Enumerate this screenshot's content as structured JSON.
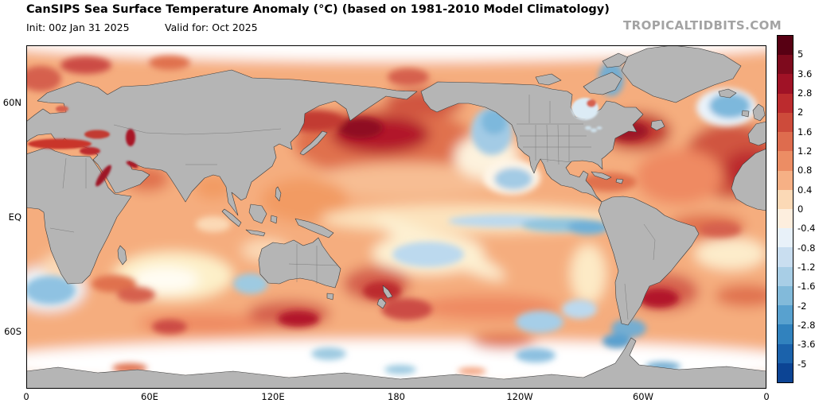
{
  "header": {
    "title": "CanSIPS Sea Surface Temperature Anomaly (°C) (based on 1981-2010 Model Climatology)",
    "init_label": "Init: 00z Jan 31 2025",
    "valid_label": "Valid for: Oct 2025",
    "watermark": "TROPICALTIDBITS.COM"
  },
  "axes": {
    "y_ticks": [
      {
        "label": "60N",
        "lat": 60
      },
      {
        "label": "EQ",
        "lat": 0
      },
      {
        "label": "60S",
        "lat": -60
      }
    ],
    "x_ticks": [
      {
        "label": "0",
        "lon": 0
      },
      {
        "label": "60E",
        "lon": 60
      },
      {
        "label": "120E",
        "lon": 120
      },
      {
        "label": "180",
        "lon": 180
      },
      {
        "label": "120W",
        "lon": 240
      },
      {
        "label": "60W",
        "lon": 300
      },
      {
        "label": "0",
        "lon": 360
      }
    ]
  },
  "colorbar": {
    "tick_labels": [
      "5",
      "3.6",
      "2.8",
      "2",
      "1.6",
      "1.2",
      "0.8",
      "0.4",
      "0",
      "-0.4",
      "-0.8",
      "-1.2",
      "-1.6",
      "-2",
      "-2.8",
      "-3.6",
      "-5"
    ],
    "segment_colors": [
      "#570013",
      "#7e0a1d",
      "#a01226",
      "#bc2b2e",
      "#cd4b3b",
      "#de6c4e",
      "#ec8d64",
      "#f6b085",
      "#fbd9b6",
      "#fdeede",
      "#e8f1f9",
      "#c9def0",
      "#a8cee6",
      "#82bada",
      "#58a1cf",
      "#3182be",
      "#1b62ab",
      "#0c4494"
    ]
  },
  "chart_data": {
    "type": "heatmap",
    "title": "CanSIPS Sea Surface Temperature Anomaly (°C) (based on 1981-2010 Model Climatology)",
    "model": "CanSIPS",
    "variable": "Sea Surface Temperature Anomaly",
    "units": "°C",
    "climatology_baseline": "1981-2010 Model Climatology",
    "init": "00z Jan 31 2025",
    "valid_for": "Oct 2025",
    "projection": "global latitude-longitude, 0°E eastward to 0°E, 90°N to 90°S",
    "x_axis_ticks": [
      "0",
      "60E",
      "120E",
      "180",
      "120W",
      "60W",
      "0"
    ],
    "y_axis_ticks": [
      "60N",
      "EQ",
      "60S"
    ],
    "colorbar_levels": [
      5,
      3.6,
      2.8,
      2,
      1.6,
      1.2,
      0.8,
      0.4,
      0,
      -0.4,
      -0.8,
      -1.2,
      -1.6,
      -2,
      -2.8,
      -3.6,
      -5
    ],
    "colorbar_colors": [
      "#570013",
      "#7e0a1d",
      "#a01226",
      "#bc2b2e",
      "#cd4b3b",
      "#de6c4e",
      "#ec8d64",
      "#f6b085",
      "#fbd9b6",
      "#fdeede",
      "#e8f1f9",
      "#c9def0",
      "#a8cee6",
      "#82bada",
      "#58a1cf",
      "#3182be",
      "#1b62ab",
      "#0c4494"
    ],
    "legend_position": "right vertical colorbar",
    "grid": false,
    "notable_anomalies": [
      {
        "region": "Central/western North Pacific east of Japan",
        "anomaly_c": "+2 to +3.6"
      },
      {
        "region": "Northeast Pacific / Gulf of Alaska and US West Coast",
        "anomaly_c": "-0.4 to -1.2"
      },
      {
        "region": "Eastern equatorial Pacific cold tongue",
        "anomaly_c": "-0.4 to -1.2"
      },
      {
        "region": "Central South Pacific patch",
        "anomaly_c": "-0.4 to -0.8"
      },
      {
        "region": "Tasman Sea / south of Australia / around New Zealand",
        "anomaly_c": "+1.6 to +3"
      },
      {
        "region": "Northwest Atlantic off US East Coast",
        "anomaly_c": "+2 to +3"
      },
      {
        "region": "Subpolar North Atlantic (south of Iceland, Davis Strait)",
        "anomaly_c": "-0.8 to -1.6"
      },
      {
        "region": "Northeast Atlantic off Europe/Northwest Africa",
        "anomaly_c": "+1.2 to +2.8"
      },
      {
        "region": "Mediterranean, Black and Caspian Seas",
        "anomaly_c": "+1.6 to +3.6"
      },
      {
        "region": "Red Sea and Persian Gulf",
        "anomaly_c": "+2.8 to +5"
      },
      {
        "region": "Southwest Atlantic off Argentina",
        "anomaly_c": "+2 to +3.6"
      },
      {
        "region": "Benguela region southwest of Africa",
        "anomaly_c": "-0.4 to -1.2"
      },
      {
        "region": "Central south Indian Ocean",
        "anomaly_c": "0 to +0.4 (near neutral)"
      },
      {
        "region": "Most tropical and subtropical oceans",
        "anomaly_c": "+0.4 to +1.2"
      }
    ]
  }
}
